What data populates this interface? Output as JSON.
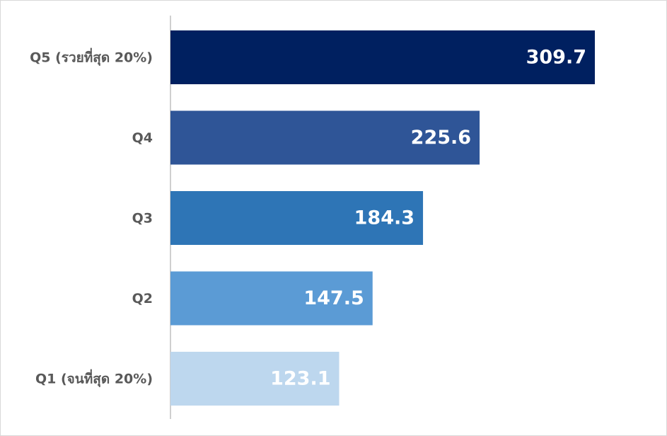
{
  "chart_data": {
    "type": "barh",
    "categories": [
      "Q5 (รวยที่สุด 20%)",
      "Q4",
      "Q3",
      "Q2",
      "Q1 (จนที่สุด 20%)"
    ],
    "values": [
      309.7,
      225.6,
      184.3,
      147.5,
      123.1
    ],
    "colors": [
      "#002060",
      "#2f5597",
      "#2e75b6",
      "#5b9bd5",
      "#bdd7ee"
    ]
  }
}
